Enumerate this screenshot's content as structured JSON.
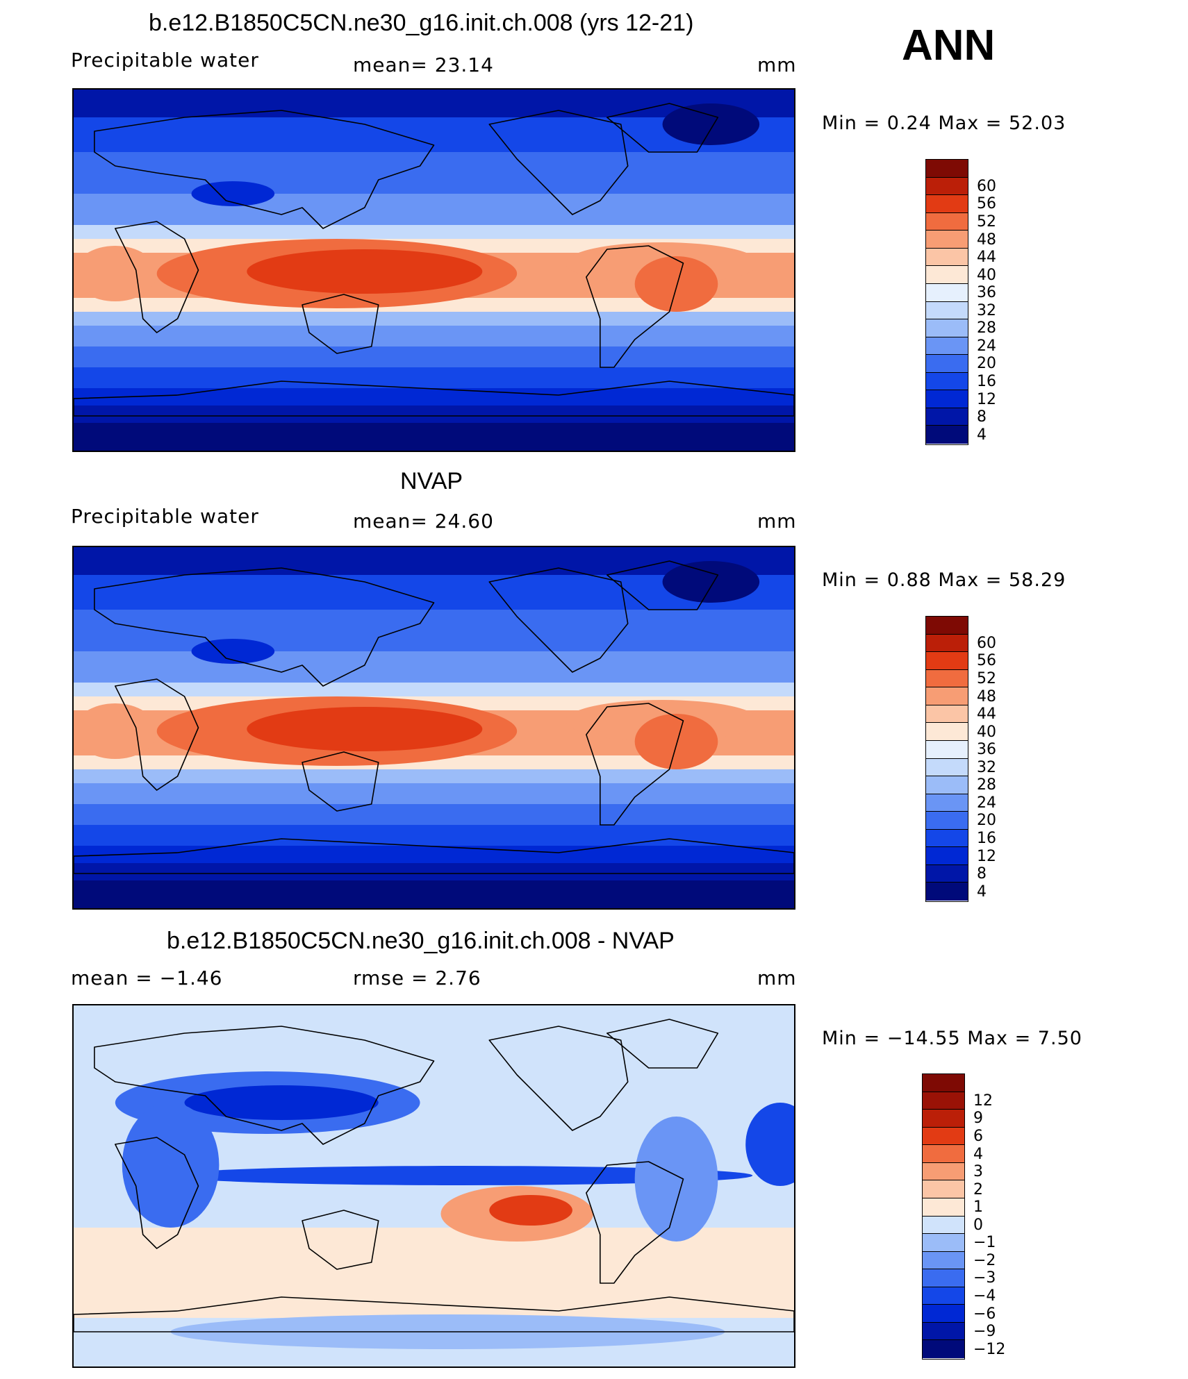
{
  "global_title": "ANN",
  "panels": [
    {
      "id": "model",
      "title": "b.e12.B1850C5CN.ne30_g16.init.ch.008 (yrs 12-21)",
      "left_label": "Precipitable  water",
      "mid_label": "mean=   23.14",
      "unit": "mm",
      "min_max": "Min  =     0.24  Max  =    52.03",
      "scale": "full",
      "levels": [
        "4",
        "8",
        "12",
        "16",
        "20",
        "24",
        "28",
        "32",
        "36",
        "40",
        "44",
        "48",
        "52",
        "56",
        "60"
      ],
      "colors": [
        "#000a7a",
        "#0016a8",
        "#0028d4",
        "#1447e8",
        "#3a6cf0",
        "#6a95f5",
        "#9bbcf8",
        "#c4dafb",
        "#e6f0fd",
        "#fde8d6",
        "#fbc5a6",
        "#f79d74",
        "#f06c3f",
        "#e23b14",
        "#bb1f08",
        "#7e0a04"
      ]
    },
    {
      "id": "obs",
      "title": "NVAP",
      "left_label": "Precipitable  water",
      "mid_label": "mean=   24.60",
      "unit": "mm",
      "min_max": "Min  =     0.88  Max  =    58.29",
      "scale": "full",
      "levels": [
        "4",
        "8",
        "12",
        "16",
        "20",
        "24",
        "28",
        "32",
        "36",
        "40",
        "44",
        "48",
        "52",
        "56",
        "60"
      ],
      "colors": [
        "#000a7a",
        "#0016a8",
        "#0028d4",
        "#1447e8",
        "#3a6cf0",
        "#6a95f5",
        "#9bbcf8",
        "#c4dafb",
        "#e6f0fd",
        "#fde8d6",
        "#fbc5a6",
        "#f79d74",
        "#f06c3f",
        "#e23b14",
        "#bb1f08",
        "#7e0a04"
      ]
    },
    {
      "id": "diff",
      "title": "b.e12.B1850C5CN.ne30_g16.init.ch.008 - NVAP",
      "left_label": "mean  =    −1.46",
      "mid_label": "rmse  =     2.76",
      "unit": "mm",
      "min_max": "Min  =  −14.55  Max  =     7.50",
      "scale": "diff",
      "levels": [
        "−12",
        "−9",
        "−6",
        "−4",
        "−3",
        "−2",
        "−1",
        "0",
        "1",
        "2",
        "3",
        "4",
        "6",
        "9",
        "12"
      ],
      "colors": [
        "#000a7a",
        "#0016a8",
        "#0028d4",
        "#1447e8",
        "#3a6cf0",
        "#6a95f5",
        "#9bbcf8",
        "#d0e3fb",
        "#fde8d6",
        "#fbc5a6",
        "#f79d74",
        "#f06c3f",
        "#e23b14",
        "#bb1f08",
        "#9a1206",
        "#7e0a04"
      ]
    }
  ]
}
